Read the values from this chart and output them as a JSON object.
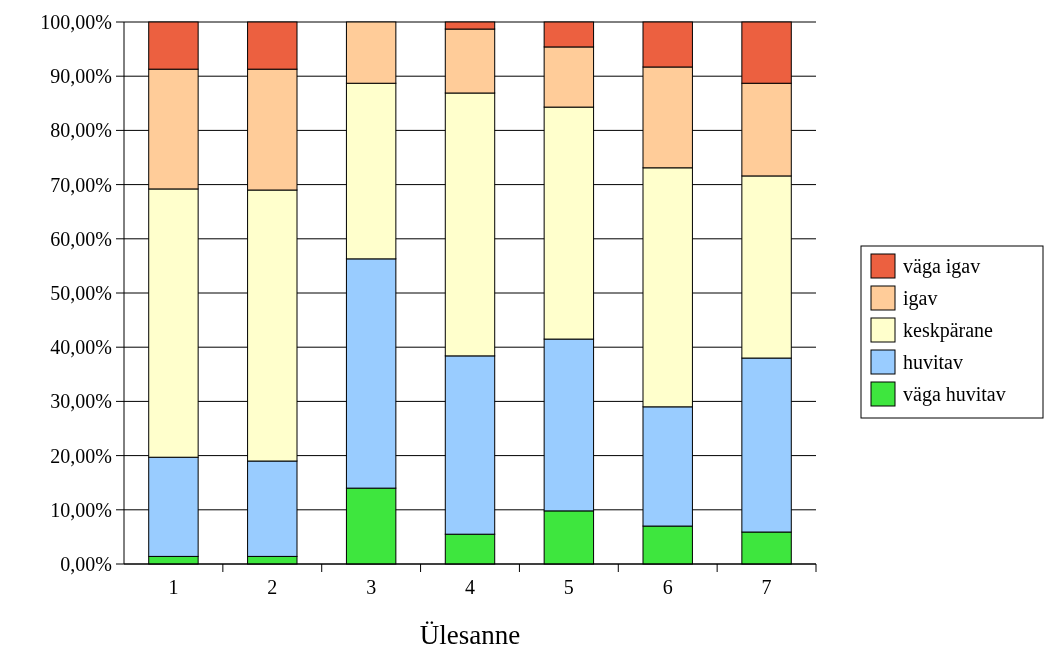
{
  "chart_data": {
    "type": "bar",
    "stacked": true,
    "xlabel": "Ülesanne",
    "categories": [
      "1",
      "2",
      "3",
      "4",
      "5",
      "6",
      "7"
    ],
    "series": [
      {
        "name": "väga huvitav",
        "color": "#3ee63e",
        "values": [
          1.4,
          1.4,
          14.0,
          5.5,
          9.8,
          7.0,
          5.9
        ]
      },
      {
        "name": "huvitav",
        "color": "#99ccff",
        "values": [
          18.3,
          17.6,
          42.3,
          32.9,
          31.7,
          22.0,
          32.1
        ]
      },
      {
        "name": "keskpärane",
        "color": "#ffffcc",
        "values": [
          49.5,
          50.0,
          32.4,
          48.5,
          42.8,
          44.1,
          33.6
        ]
      },
      {
        "name": "igav",
        "color": "#ffcc99",
        "values": [
          22.1,
          22.3,
          11.3,
          11.8,
          11.1,
          18.6,
          17.1
        ]
      },
      {
        "name": "väga igav",
        "color": "#ec6040",
        "values": [
          8.7,
          8.7,
          0,
          1.3,
          4.6,
          8.3,
          11.3
        ]
      }
    ],
    "ylim": [
      0,
      100
    ],
    "yticks": [
      {
        "value": 0,
        "label": "0,00%"
      },
      {
        "value": 10,
        "label": "10,00%"
      },
      {
        "value": 20,
        "label": "20,00%"
      },
      {
        "value": 30,
        "label": "30,00%"
      },
      {
        "value": 40,
        "label": "40,00%"
      },
      {
        "value": 50,
        "label": "50,00%"
      },
      {
        "value": 60,
        "label": "60,00%"
      },
      {
        "value": 70,
        "label": "70,00%"
      },
      {
        "value": 80,
        "label": "80,00%"
      },
      {
        "value": 90,
        "label": "90,00%"
      },
      {
        "value": 100,
        "label": "100,00%"
      }
    ],
    "grid": "y",
    "legend": "right"
  }
}
